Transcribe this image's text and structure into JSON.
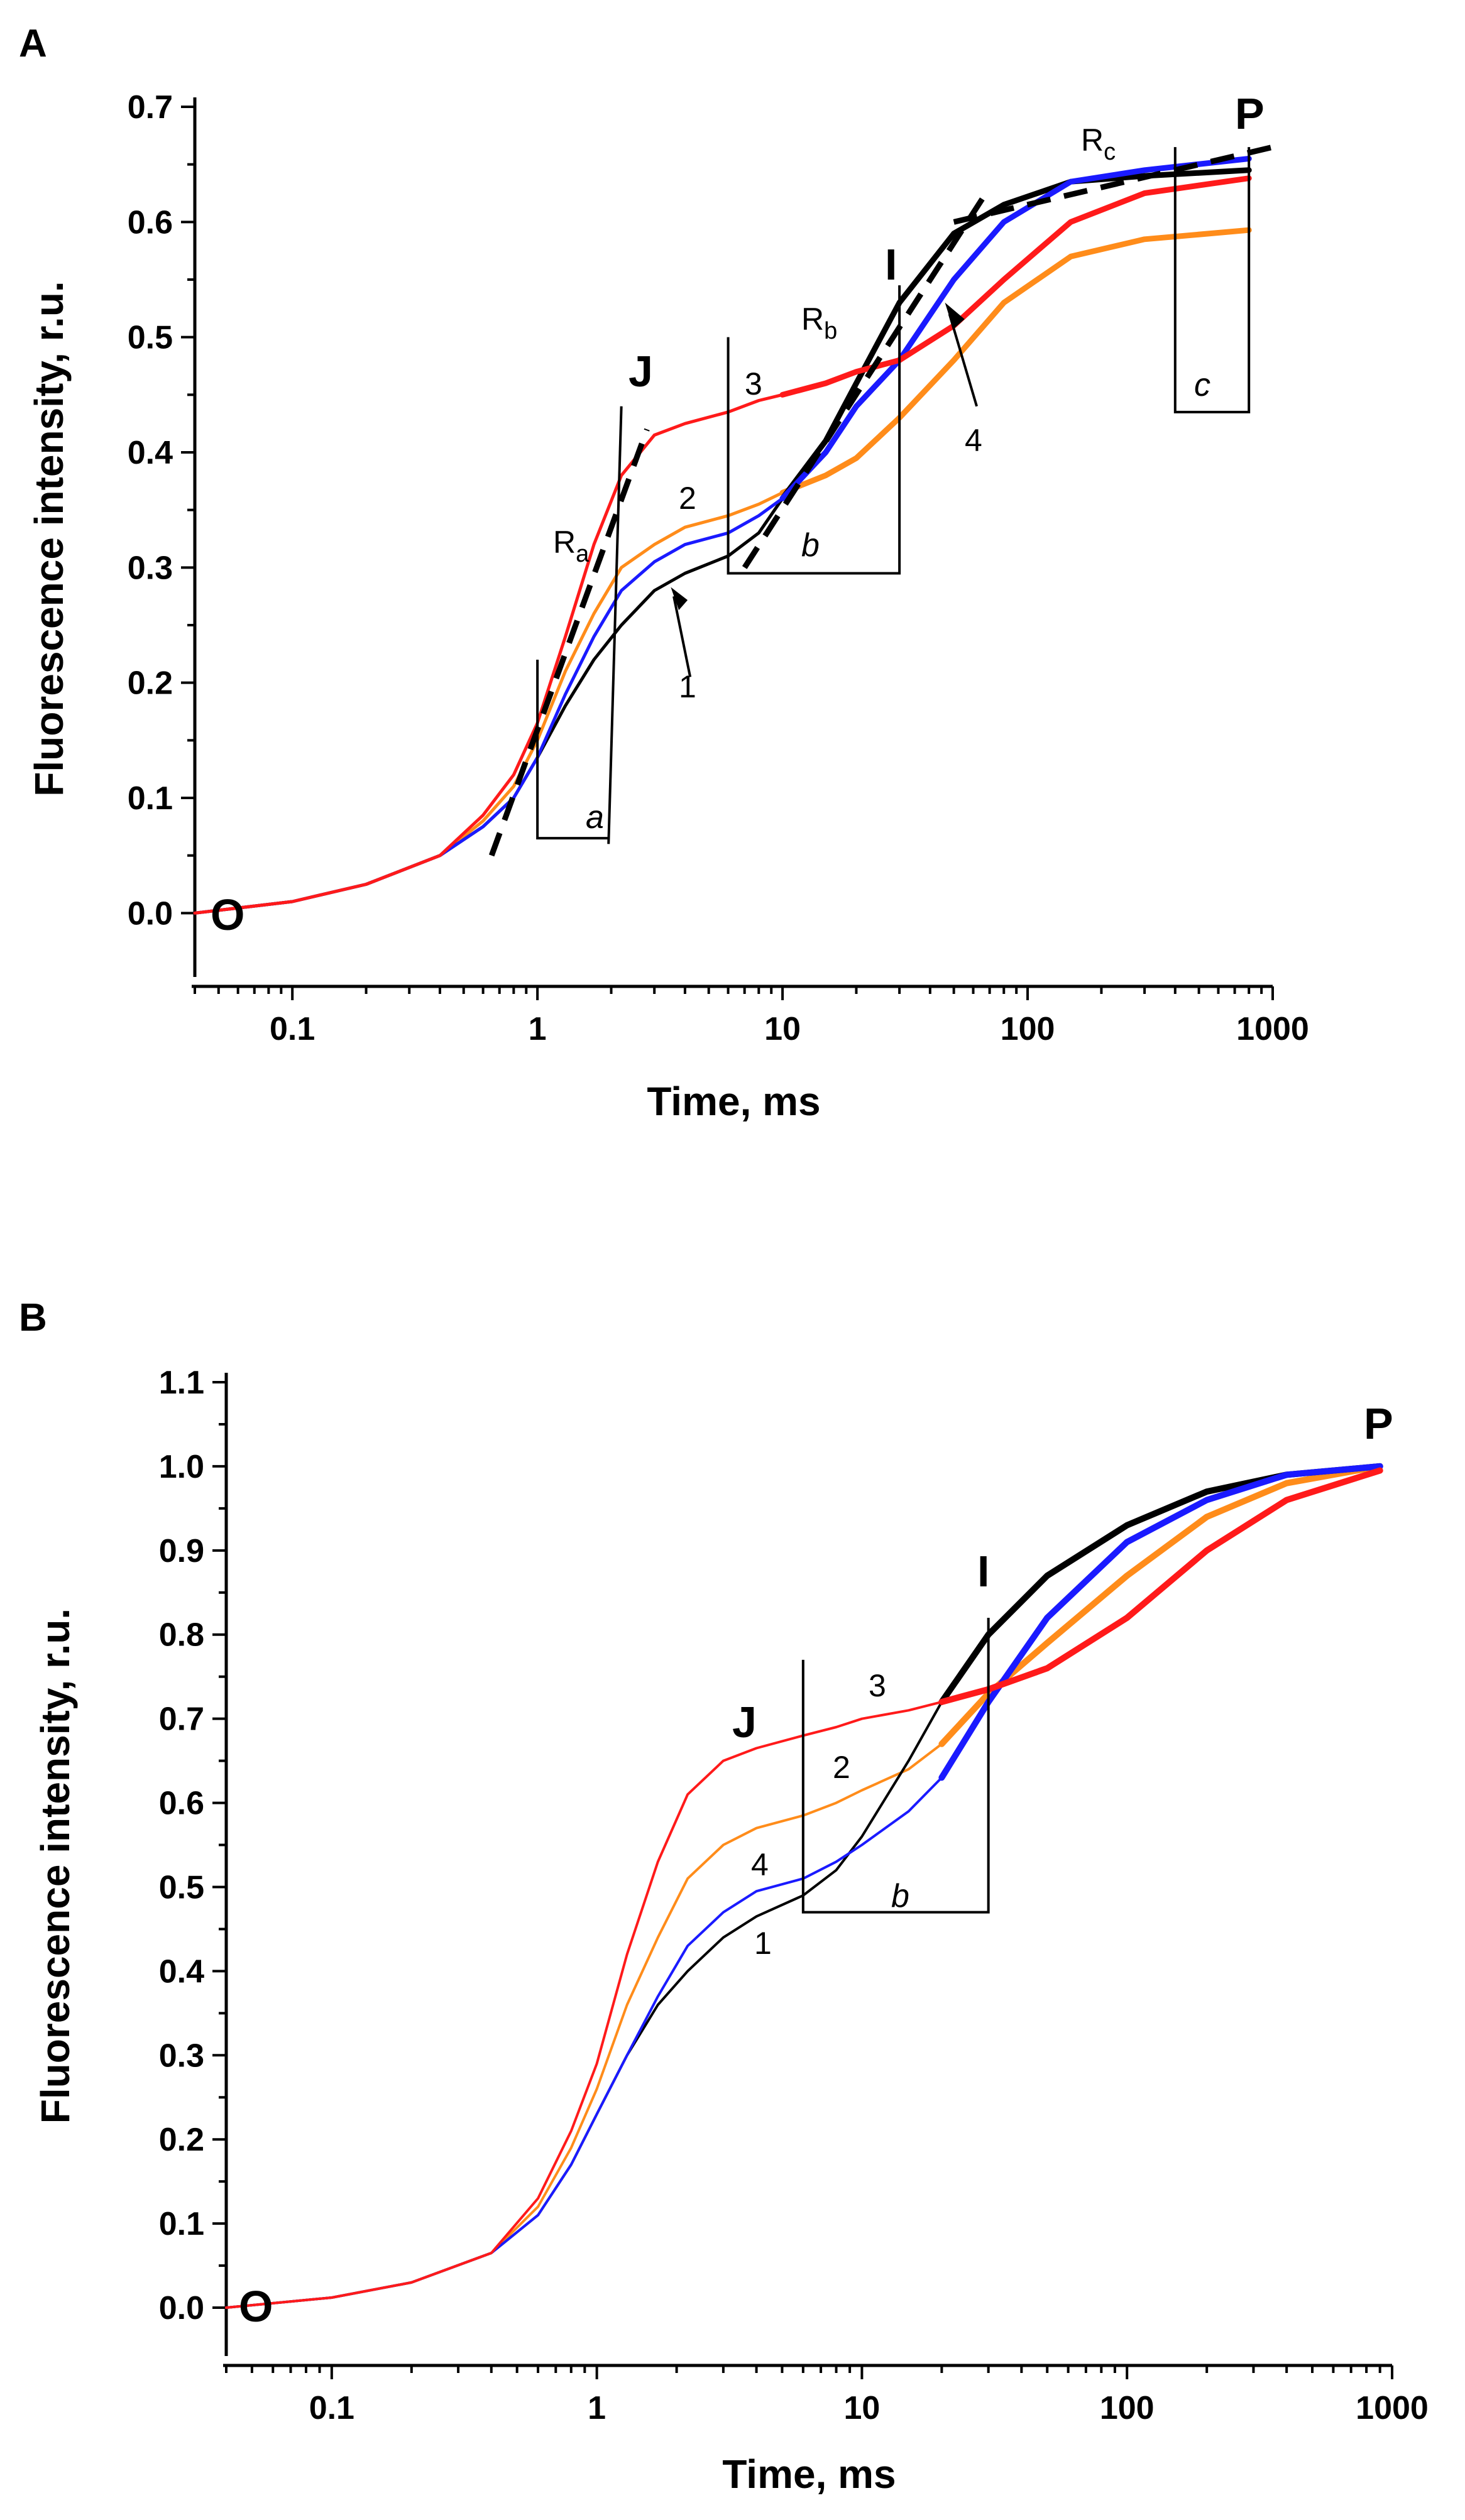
{
  "chart_data": [
    {
      "type": "line",
      "panel_label": "A",
      "xlabel": "Time, ms",
      "ylabel": "Fluorescence intensity, r.u.",
      "xscale": "log",
      "xlim": [
        0.04,
        1000
      ],
      "ylim": [
        -0.05,
        0.7
      ],
      "xticks": [
        0.1,
        1,
        10,
        100,
        1000
      ],
      "xtick_labels": [
        "0.1",
        "1",
        "10",
        "100",
        "1000"
      ],
      "yticks": [
        0.0,
        0.1,
        0.2,
        0.3,
        0.4,
        0.5,
        0.6,
        0.7
      ],
      "ytick_labels": [
        "0.0",
        "0.1",
        "0.2",
        "0.3",
        "0.4",
        "0.5",
        "0.6",
        "0.7"
      ],
      "colors": {
        "1": "#000000",
        "2": "#ff8c1a",
        "3": "#ff1a1a",
        "4": "#1a1aff"
      },
      "series": [
        {
          "name": "1",
          "x": [
            0.04,
            0.1,
            0.2,
            0.4,
            0.6,
            0.8,
            1,
            1.3,
            1.7,
            2.2,
            3,
            4,
            6,
            8,
            10,
            15,
            20,
            30,
            50,
            80,
            150,
            300,
            800
          ],
          "y": [
            0.0,
            0.01,
            0.025,
            0.05,
            0.075,
            0.1,
            0.135,
            0.18,
            0.22,
            0.25,
            0.28,
            0.295,
            0.31,
            0.33,
            0.36,
            0.41,
            0.46,
            0.53,
            0.59,
            0.615,
            0.635,
            0.64,
            0.645
          ]
        },
        {
          "name": "2",
          "x": [
            0.04,
            0.1,
            0.2,
            0.4,
            0.6,
            0.8,
            1,
            1.3,
            1.7,
            2.2,
            3,
            4,
            6,
            8,
            10,
            15,
            20,
            30,
            50,
            80,
            150,
            300,
            800
          ],
          "y": [
            0.0,
            0.01,
            0.025,
            0.05,
            0.08,
            0.11,
            0.15,
            0.21,
            0.26,
            0.3,
            0.32,
            0.335,
            0.345,
            0.355,
            0.365,
            0.38,
            0.395,
            0.43,
            0.48,
            0.53,
            0.57,
            0.585,
            0.593
          ]
        },
        {
          "name": "3",
          "x": [
            0.04,
            0.1,
            0.2,
            0.4,
            0.6,
            0.8,
            1,
            1.3,
            1.7,
            2.2,
            3,
            4,
            6,
            8,
            10,
            15,
            20,
            30,
            50,
            80,
            150,
            300,
            800
          ],
          "y": [
            0.0,
            0.01,
            0.025,
            0.05,
            0.085,
            0.12,
            0.165,
            0.24,
            0.32,
            0.38,
            0.415,
            0.425,
            0.435,
            0.445,
            0.45,
            0.46,
            0.47,
            0.48,
            0.51,
            0.55,
            0.6,
            0.625,
            0.638
          ]
        },
        {
          "name": "4",
          "x": [
            0.04,
            0.1,
            0.2,
            0.4,
            0.6,
            0.8,
            1,
            1.3,
            1.7,
            2.2,
            3,
            4,
            6,
            8,
            10,
            15,
            20,
            30,
            50,
            80,
            150,
            300,
            800
          ],
          "y": [
            0.0,
            0.01,
            0.025,
            0.05,
            0.075,
            0.1,
            0.135,
            0.19,
            0.24,
            0.28,
            0.305,
            0.32,
            0.33,
            0.345,
            0.36,
            0.4,
            0.44,
            0.48,
            0.55,
            0.6,
            0.635,
            0.645,
            0.655
          ]
        }
      ],
      "tangent_lines": [
        {
          "label": "Ra",
          "x": [
            0.65,
            2.8
          ],
          "y": [
            0.05,
            0.42
          ]
        },
        {
          "label": "Rb",
          "x": [
            7,
            70
          ],
          "y": [
            0.3,
            0.63
          ]
        },
        {
          "label": "Rc",
          "x": [
            50,
            1000
          ],
          "y": [
            0.6,
            0.665
          ]
        }
      ],
      "annotations": {
        "O": "O",
        "J": "J",
        "I": "I",
        "P": "P",
        "Ra_main": "R",
        "Ra_sub": "a",
        "Rb_main": "R",
        "Rb_sub": "b",
        "Rc_main": "R",
        "Rc_sub": "c",
        "interval_a": "a",
        "interval_b": "b",
        "interval_c": "c",
        "curve_labels": [
          "1",
          "2",
          "3",
          "4"
        ]
      }
    },
    {
      "type": "line",
      "panel_label": "B",
      "xlabel": "Time, ms",
      "ylabel": "Fluorescence intensity, r.u.",
      "xscale": "log",
      "xlim": [
        0.04,
        1000
      ],
      "ylim": [
        -0.05,
        1.1
      ],
      "xticks": [
        0.1,
        1,
        10,
        100,
        1000
      ],
      "xtick_labels": [
        "0.1",
        "1",
        "10",
        "100",
        "1000"
      ],
      "yticks": [
        0.0,
        0.1,
        0.2,
        0.3,
        0.4,
        0.5,
        0.6,
        0.7,
        0.8,
        0.9,
        1.0,
        1.1
      ],
      "ytick_labels": [
        "0.0",
        "0.1",
        "0.2",
        "0.3",
        "0.4",
        "0.5",
        "0.6",
        "0.7",
        "0.8",
        "0.9",
        "1.0",
        "1.1"
      ],
      "series": [
        {
          "name": "1",
          "x": [
            0.04,
            0.1,
            0.2,
            0.4,
            0.6,
            0.8,
            1,
            1.3,
            1.7,
            2.2,
            3,
            4,
            6,
            8,
            10,
            15,
            20,
            30,
            50,
            100,
            200,
            400,
            900
          ],
          "y": [
            0.0,
            0.012,
            0.03,
            0.065,
            0.11,
            0.17,
            0.23,
            0.3,
            0.36,
            0.4,
            0.44,
            0.465,
            0.49,
            0.52,
            0.56,
            0.65,
            0.72,
            0.8,
            0.87,
            0.93,
            0.97,
            0.99,
            1.0
          ]
        },
        {
          "name": "2",
          "x": [
            0.04,
            0.1,
            0.2,
            0.4,
            0.6,
            0.8,
            1,
            1.3,
            1.7,
            2.2,
            3,
            4,
            6,
            8,
            10,
            15,
            20,
            30,
            50,
            100,
            200,
            400,
            900
          ],
          "y": [
            0.0,
            0.012,
            0.03,
            0.065,
            0.12,
            0.19,
            0.26,
            0.36,
            0.44,
            0.51,
            0.55,
            0.57,
            0.585,
            0.6,
            0.615,
            0.64,
            0.67,
            0.73,
            0.79,
            0.87,
            0.94,
            0.98,
            1.0
          ]
        },
        {
          "name": "3",
          "x": [
            0.04,
            0.1,
            0.2,
            0.4,
            0.6,
            0.8,
            1,
            1.3,
            1.7,
            2.2,
            3,
            4,
            6,
            8,
            10,
            15,
            20,
            30,
            50,
            100,
            200,
            400,
            900
          ],
          "y": [
            0.0,
            0.012,
            0.03,
            0.065,
            0.13,
            0.21,
            0.29,
            0.42,
            0.53,
            0.61,
            0.65,
            0.665,
            0.68,
            0.69,
            0.7,
            0.71,
            0.72,
            0.735,
            0.76,
            0.82,
            0.9,
            0.96,
            0.995
          ]
        },
        {
          "name": "4",
          "x": [
            0.04,
            0.1,
            0.2,
            0.4,
            0.6,
            0.8,
            1,
            1.3,
            1.7,
            2.2,
            3,
            4,
            6,
            8,
            10,
            15,
            20,
            30,
            50,
            100,
            200,
            400,
            900
          ],
          "y": [
            0.0,
            0.012,
            0.03,
            0.065,
            0.11,
            0.17,
            0.23,
            0.3,
            0.37,
            0.43,
            0.47,
            0.495,
            0.51,
            0.53,
            0.55,
            0.59,
            0.63,
            0.72,
            0.82,
            0.91,
            0.96,
            0.99,
            1.0
          ]
        }
      ],
      "annotations": {
        "O": "O",
        "J": "J",
        "I": "I",
        "P": "P",
        "interval_b": "b",
        "curve_labels": [
          "1",
          "2",
          "3",
          "4"
        ]
      }
    }
  ]
}
